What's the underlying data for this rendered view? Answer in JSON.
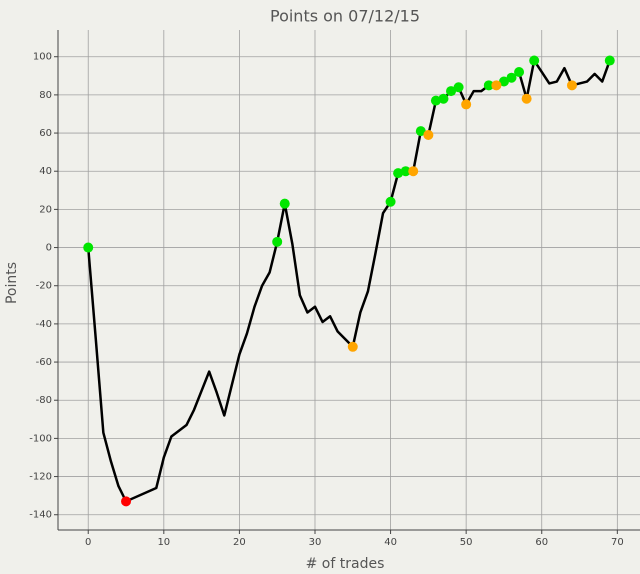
{
  "chart_data": {
    "type": "line",
    "title": "Points on 07/12/15",
    "x_label": "# of trades",
    "y_label": "Points",
    "xlim": [
      -4,
      73
    ],
    "ylim": [
      -148,
      114
    ],
    "xticks": [
      0,
      10,
      20,
      30,
      40,
      50,
      60,
      70
    ],
    "yticks": [
      -140,
      -120,
      -100,
      -80,
      -60,
      -40,
      -20,
      0,
      20,
      40,
      60,
      80,
      100
    ],
    "grid": true,
    "series": [
      {
        "color": "#000000",
        "x": [
          0,
          1,
          2,
          3,
          4,
          5,
          9,
          10,
          11,
          12,
          13,
          14,
          15,
          16,
          17,
          18,
          19,
          20,
          21,
          22,
          23,
          24,
          25,
          26,
          27,
          28,
          29,
          30,
          31,
          32,
          33,
          34,
          35,
          36,
          37,
          38,
          39,
          40,
          41,
          42,
          43,
          44,
          45,
          46,
          47,
          48,
          49,
          50,
          51,
          52,
          53,
          54,
          55,
          56,
          57,
          58,
          59,
          60,
          61,
          62,
          63,
          64,
          65,
          66,
          67,
          68,
          69
        ],
        "values": [
          0,
          -48,
          -97,
          -112,
          -125,
          -133,
          -126,
          -110,
          -99,
          -96,
          -93,
          -85,
          -75,
          -65,
          -76,
          -88,
          -72,
          -56,
          -45,
          -31,
          -20,
          -13,
          3,
          23,
          2,
          -25,
          -34,
          -31,
          -39,
          -36,
          -44,
          -48,
          -52,
          -34,
          -23,
          -3,
          18,
          24,
          39,
          40,
          40,
          61,
          59,
          77,
          78,
          82,
          84,
          75,
          82,
          82,
          85,
          85,
          87,
          89,
          92,
          78,
          98,
          92,
          86,
          87,
          94,
          85,
          86,
          87,
          91,
          87,
          98
        ]
      }
    ],
    "points": [
      {
        "color": "#00e600",
        "x": [
          0,
          25,
          26,
          40,
          41,
          42,
          44,
          46,
          47,
          48,
          49,
          53,
          55,
          56,
          57,
          59,
          69
        ],
        "values": [
          0,
          3,
          23,
          24,
          39,
          40,
          61,
          77,
          78,
          82,
          84,
          85,
          87,
          89,
          92,
          98,
          98
        ]
      },
      {
        "color": "#ffa500",
        "x": [
          35,
          43,
          45,
          50,
          54,
          58,
          64
        ],
        "values": [
          -52,
          40,
          59,
          75,
          85,
          78,
          85
        ]
      },
      {
        "color": "#ff0000",
        "x": [
          5
        ],
        "values": [
          -133
        ]
      }
    ]
  }
}
